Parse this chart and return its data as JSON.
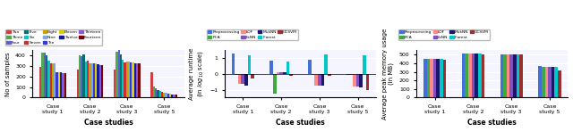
{
  "chart1": {
    "xlabel": "Case studies",
    "ylabel": "No of samples",
    "categories": [
      "Case\nstudy 1",
      "Case\nstudy 2",
      "Case\nstudy 3",
      "Case\nstudy 5"
    ],
    "legend_labels": [
      "Two",
      "Three",
      "Four",
      "Five",
      "Six",
      "Seven",
      "Eight",
      "Nine",
      "Ten",
      "Eleven",
      "Twelve",
      "Thirteen",
      "Fourteen"
    ],
    "legend_colors": [
      "#d04040",
      "#50a850",
      "#6060c8",
      "#007070",
      "#00c8c8",
      "#c83030",
      "#c8a000",
      "#80a8d8",
      "#3838d0",
      "#d8d000",
      "#18189a",
      "#8858d0",
      "#780000"
    ],
    "values": [
      [
        290,
        270,
        265,
        240
      ],
      [
        430,
        405,
        440,
        105
      ],
      [
        430,
        395,
        450,
        90
      ],
      [
        400,
        410,
        415,
        75
      ],
      [
        350,
        340,
        360,
        65
      ],
      [
        325,
        348,
        335,
        55
      ],
      [
        330,
        330,
        342,
        50
      ],
      [
        330,
        330,
        340,
        45
      ],
      [
        240,
        325,
        332,
        40
      ],
      [
        240,
        322,
        335,
        35
      ],
      [
        238,
        318,
        330,
        33
      ],
      [
        235,
        313,
        328,
        33
      ],
      [
        235,
        308,
        323,
        33
      ]
    ],
    "ylim": [
      0,
      450
    ],
    "yticks": [
      0,
      100,
      200,
      300,
      400
    ]
  },
  "chart2": {
    "xlabel": "Case studies",
    "ylabel": "Average runtime\n(in $log_{10}$ scale)",
    "categories": [
      "Case\nstudy 1",
      "Case\nstudy 2",
      "Case\nstudy 3",
      "Case\nstudy 5"
    ],
    "legend_labels": [
      "Preprocessing",
      "PCA",
      "LOF",
      "LkNN",
      "MukNN",
      "IForest",
      "OCSVM"
    ],
    "legend_colors": [
      "#4070d8",
      "#40a840",
      "#ff8888",
      "#8050c0",
      "#18186a",
      "#00c8c8",
      "#983030"
    ],
    "values": [
      [
        1.3,
        0.85,
        0.88,
        -0.05
      ],
      [
        -0.05,
        -1.25,
        -0.05,
        -0.05
      ],
      [
        -0.65,
        0.12,
        -0.72,
        -0.82
      ],
      [
        -0.65,
        0.12,
        -0.72,
        -0.82
      ],
      [
        -0.75,
        0.12,
        -0.72,
        -0.88
      ],
      [
        1.18,
        0.8,
        1.22,
        1.2
      ],
      [
        -0.28,
        -0.12,
        -0.12,
        -1.02
      ]
    ],
    "ylim": [
      -1.5,
      1.5
    ],
    "yticks": [
      -1.0,
      0.0,
      1.0
    ]
  },
  "chart3": {
    "xlabel": "Case studies",
    "ylabel": "Average peak memory usage\n(in MB)",
    "categories": [
      "Case\nstudy 1",
      "Case\nstudy 2",
      "Case\nstudy 3",
      "Case\nstudy 5"
    ],
    "legend_labels": [
      "Preprocessing",
      "PCA",
      "LOF",
      "LkNN",
      "MukNN",
      "IForest",
      "OCSVM"
    ],
    "legend_colors": [
      "#4070d8",
      "#40a840",
      "#ff8888",
      "#8050c0",
      "#18186a",
      "#00c8c8",
      "#983030"
    ],
    "values": [
      [
        450,
        510,
        505,
        365
      ],
      [
        450,
        510,
        500,
        360
      ],
      [
        448,
        508,
        498,
        358
      ],
      [
        448,
        508,
        498,
        355
      ],
      [
        448,
        508,
        498,
        355
      ],
      [
        448,
        508,
        498,
        355
      ],
      [
        445,
        505,
        498,
        312
      ]
    ],
    "ylim": [
      0,
      550
    ],
    "yticks": [
      0,
      100,
      200,
      300,
      400,
      500
    ]
  }
}
